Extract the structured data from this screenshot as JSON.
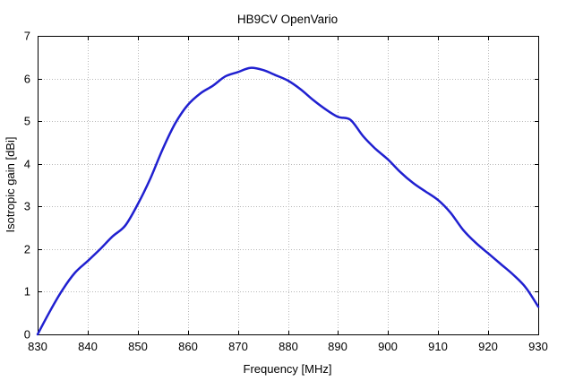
{
  "colors": {
    "background": "#ffffff",
    "frame": "#000000",
    "grid": "#b8b8b8",
    "text": "#000000",
    "line": "#2020d0"
  },
  "chart_data": {
    "type": "line",
    "title": "HB9CV OpenVario",
    "xlabel": "Frequency [MHz]",
    "ylabel": "Isotropic gain [dBi]",
    "xlim": [
      830,
      930
    ],
    "ylim": [
      0,
      7
    ],
    "x_ticks": [
      830,
      840,
      850,
      860,
      870,
      880,
      890,
      900,
      910,
      920,
      930
    ],
    "y_ticks": [
      0,
      1,
      2,
      3,
      4,
      5,
      6,
      7
    ],
    "grid": true,
    "legend": false,
    "series": [
      {
        "name": "isotropic-gain",
        "color": "#2020d0",
        "x": [
          830,
          832.5,
          835,
          837.5,
          840,
          842.5,
          845,
          847.5,
          850,
          852.5,
          855,
          857.5,
          860,
          862.5,
          865,
          867.5,
          870,
          872.5,
          875,
          877.5,
          880,
          882.5,
          885,
          887.5,
          890,
          892.5,
          895,
          897.5,
          900,
          902.5,
          905,
          907.5,
          910,
          912.5,
          915,
          917.5,
          920,
          922.5,
          925,
          927.5,
          930
        ],
        "y": [
          0.0,
          0.55,
          1.05,
          1.45,
          1.72,
          2.0,
          2.3,
          2.55,
          3.05,
          3.65,
          4.35,
          4.95,
          5.38,
          5.65,
          5.83,
          6.05,
          6.15,
          6.25,
          6.2,
          6.08,
          5.95,
          5.75,
          5.5,
          5.28,
          5.1,
          5.03,
          4.65,
          4.35,
          4.1,
          3.8,
          3.55,
          3.35,
          3.15,
          2.85,
          2.45,
          2.15,
          1.9,
          1.65,
          1.4,
          1.1,
          0.65
        ]
      }
    ]
  }
}
